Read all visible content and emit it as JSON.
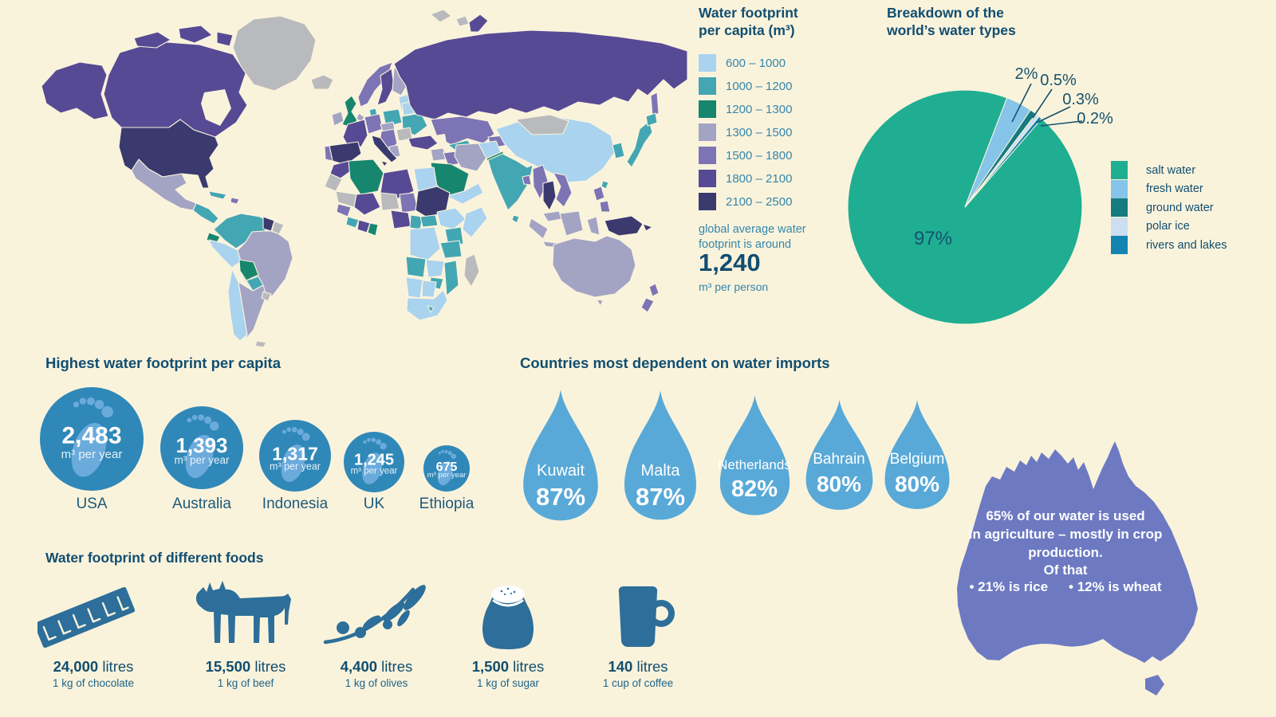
{
  "colors": {
    "background": "#faf3dc",
    "heading_text": "#114e70",
    "body_text": "#3486ab",
    "footprint_circle": "#2f88b8",
    "footprint_glyph": "#6aabdc",
    "water_drop": "#58a9d7",
    "food_icon": "#2d6f9a",
    "australia_fill": "#6d7ac2",
    "map_no_data": "#b9babd",
    "leader_line": "#14536e"
  },
  "map_legend": {
    "title_line1": "Water footprint",
    "title_line2": "per capita (m³)",
    "note_line1": "global average water",
    "note_line2": "footprint is around",
    "average_value": "1,240",
    "average_unit": "m³ per person"
  },
  "pie": {
    "title_line1": "Breakdown of the",
    "title_line2": "world’s water types"
  },
  "australia_fact": {
    "line1": "65% of our water is used",
    "line2": "in agriculture – mostly in crop",
    "line3": "production.",
    "subline": "Of that",
    "bullet1": "• 21% is rice",
    "bullet2": "• 12% is wheat"
  },
  "chart_data": [
    {
      "id": "water_footprint_map",
      "type": "choropleth",
      "title": "Water footprint per capita (m³)",
      "bins": [
        {
          "range": "600 – 1000",
          "color": "#a9d3ef"
        },
        {
          "range": "1000 – 1200",
          "color": "#43a6b3"
        },
        {
          "range": "1200 – 1300",
          "color": "#17866e"
        },
        {
          "range": "1300 – 1500",
          "color": "#a3a3c4"
        },
        {
          "range": "1500 – 1800",
          "color": "#7d74b5"
        },
        {
          "range": "1800 – 2100",
          "color": "#564a95"
        },
        {
          "range": "2100 – 2500",
          "color": "#3a3a6f"
        }
      ],
      "note": "global average water footprint is around",
      "average_value": 1240,
      "average_unit": "m³ per person"
    },
    {
      "id": "water_types_pie",
      "type": "pie",
      "title": "Breakdown of the world’s water types",
      "legend_position": "right",
      "slices": [
        {
          "label": "salt water",
          "value": 97,
          "display": "97%",
          "color": "#1fae92"
        },
        {
          "label": "fresh water",
          "value": 2,
          "display": "2%",
          "color": "#86c4ea"
        },
        {
          "label": "ground water",
          "value": 0.5,
          "display": "0.5%",
          "color": "#167b80"
        },
        {
          "label": "polar ice",
          "value": 0.3,
          "display": "0.3%",
          "color": "#cbdff1"
        },
        {
          "label": "rivers and lakes",
          "value": 0.2,
          "display": "0.2%",
          "color": "#1583b1"
        }
      ]
    },
    {
      "id": "footprint_per_capita",
      "type": "pictogram",
      "shape": "footprint-circle",
      "title": "Highest water footprint per capita",
      "unit": "m³ per year",
      "items": [
        {
          "country": "USA",
          "value": 2483,
          "display": "2,483"
        },
        {
          "country": "Australia",
          "value": 1393,
          "display": "1,393"
        },
        {
          "country": "Indonesia",
          "value": 1317,
          "display": "1,317"
        },
        {
          "country": "UK",
          "value": 1245,
          "display": "1,245"
        },
        {
          "country": "Ethiopia",
          "value": 675,
          "display": "675"
        }
      ]
    },
    {
      "id": "import_dependence",
      "type": "pictogram",
      "shape": "water-drop",
      "title": "Countries most dependent on water imports",
      "items": [
        {
          "country": "Kuwait",
          "value": 87,
          "display": "87%"
        },
        {
          "country": "Malta",
          "value": 87,
          "display": "87%"
        },
        {
          "country": "Netherlands",
          "value": 82,
          "display": "82%"
        },
        {
          "country": "Bahrain",
          "value": 80,
          "display": "80%"
        },
        {
          "country": "Belgium",
          "value": 80,
          "display": "80%"
        }
      ]
    },
    {
      "id": "food_footprint",
      "type": "pictogram",
      "shape": "food-icons",
      "title": "Water footprint of different foods",
      "unit": "litres",
      "items": [
        {
          "food": "chocolate",
          "icon": "chocolate-bar-icon",
          "value": 24000,
          "display": "24,000",
          "caption": "1 kg of chocolate"
        },
        {
          "food": "beef",
          "icon": "cow-icon",
          "value": 15500,
          "display": "15,500",
          "caption": "1 kg of beef"
        },
        {
          "food": "olives",
          "icon": "olive-branch-icon",
          "value": 4400,
          "display": "4,400",
          "caption": "1 kg of olives"
        },
        {
          "food": "sugar",
          "icon": "sugar-sack-icon",
          "value": 1500,
          "display": "1,500",
          "caption": "1 kg of sugar"
        },
        {
          "food": "coffee",
          "icon": "coffee-mug-icon",
          "value": 140,
          "display": "140",
          "caption": "1 cup of coffee"
        }
      ]
    }
  ]
}
